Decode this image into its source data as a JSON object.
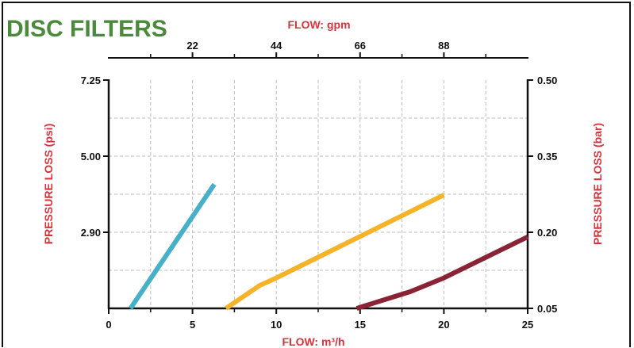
{
  "chart_data": {
    "type": "line",
    "title": "DISC FILTERS",
    "x_top_label": "FLOW: gpm",
    "x_top_ticks": [
      "22",
      "44",
      "66",
      "88"
    ],
    "x_top_tick_values": [
      5,
      10,
      15,
      20
    ],
    "xlabel": "FLOW: m³/h",
    "xlim": [
      0,
      25
    ],
    "x_ticks": [
      0,
      5,
      10,
      15,
      20,
      25
    ],
    "ylabel_left": "PRESSURE  LOSS  (psi)",
    "ylabel_right": "PRESSURE  LOSS  (bar)",
    "y_left_ticks": [
      "2.90",
      "5.00",
      "7.25"
    ],
    "y_right_ticks": [
      "0.05",
      "0.20",
      "0.35",
      "0.50"
    ],
    "y_left_tick_pos": [
      1,
      2,
      3
    ],
    "y_right_tick_pos": [
      0,
      1,
      2,
      3
    ],
    "ylim": [
      0,
      3
    ],
    "grid": true,
    "series": [
      {
        "color": "#45b0c8",
        "x": [
          1.3,
          6.3
        ],
        "y": [
          0.0,
          1.63
        ]
      },
      {
        "color": "#f5b428",
        "x": [
          7.0,
          9.0,
          10.0,
          20.0
        ],
        "y": [
          0.0,
          0.3,
          0.4,
          1.49
        ]
      },
      {
        "color": "#8a2333",
        "x": [
          14.8,
          18.0,
          20.0,
          25.0
        ],
        "y": [
          0.0,
          0.22,
          0.4,
          0.94
        ]
      }
    ]
  }
}
